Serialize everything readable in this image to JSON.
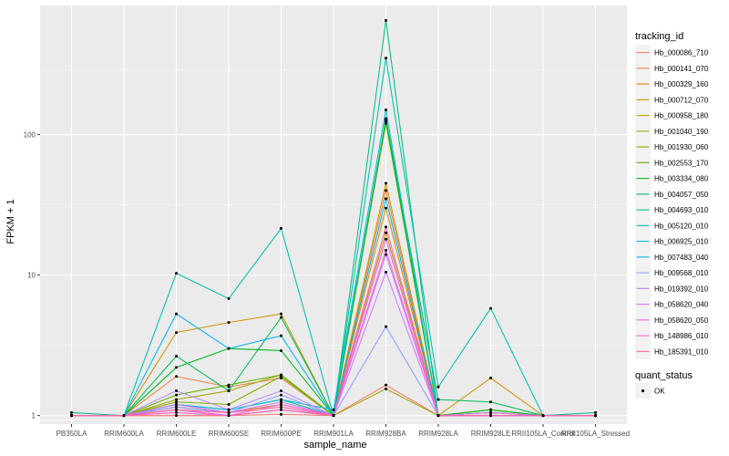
{
  "chart_data": {
    "type": "line",
    "xlabel": "sample_name",
    "ylabel": "FPKM + 1",
    "y_scale": "log10",
    "ylim": [
      0.87,
      830
    ],
    "y_ticks": [
      {
        "value": 1,
        "label": "1"
      },
      {
        "value": 10,
        "label": "10"
      },
      {
        "value": 100,
        "label": "100"
      }
    ],
    "grid": true,
    "legend_position": "right",
    "categories": [
      "PB350LA",
      "RRIM600LA",
      "RRIM600LE",
      "RRIM600SE",
      "RRIM600PE",
      "RRIM901LA",
      "RRIM928BA",
      "RRIM928LA",
      "RRIM928LE",
      "RRII105LA_Control",
      "RRII105LA_Stressed"
    ],
    "legend": {
      "title": "tracking_id",
      "series_names": [
        "Hb_000086_710",
        "Hb_000141_070",
        "Hb_000329_160",
        "Hb_000712_070",
        "Hb_000958_180",
        "Hb_001040_190",
        "Hb_001930_060",
        "Hb_002553_170",
        "Hb_003334_080",
        "Hb_004057_050",
        "Hb_004693_010",
        "Hb_005120_010",
        "Hb_006925_010",
        "Hb_007483_040",
        "Hb_009568_010",
        "Hb_019392_010",
        "Hb_058620_040",
        "Hb_058620_050",
        "Hb_148986_010",
        "Hb_185391_010"
      ]
    },
    "quant_legend": {
      "title": "quant_status",
      "label": "OK"
    },
    "series": [
      {
        "name": "Hb_000086_710",
        "color": "#F8766D",
        "values": [
          1.0,
          1.0,
          1.0,
          1.0,
          1.02,
          1.0,
          1.65,
          1.0,
          1.0,
          1.0,
          1.0
        ]
      },
      {
        "name": "Hb_000141_070",
        "color": "#EE8044",
        "values": [
          1.0,
          1.0,
          1.9,
          1.6,
          1.85,
          1.0,
          40,
          1.0,
          1.05,
          1.0,
          1.0
        ]
      },
      {
        "name": "Hb_000329_160",
        "color": "#E08B00",
        "values": [
          1.0,
          1.0,
          1.15,
          1.05,
          1.2,
          1.0,
          30,
          1.0,
          1.0,
          1.0,
          1.0
        ]
      },
      {
        "name": "Hb_000712_070",
        "color": "#CF9400",
        "values": [
          1.0,
          1.0,
          3.9,
          4.6,
          5.3,
          1.0,
          45,
          1.0,
          1.85,
          1.0,
          1.0
        ]
      },
      {
        "name": "Hb_000958_180",
        "color": "#BB9D00",
        "values": [
          1.0,
          1.0,
          1.1,
          1.0,
          1.1,
          1.0,
          20,
          1.0,
          1.0,
          1.0,
          1.0
        ]
      },
      {
        "name": "Hb_001040_190",
        "color": "#A3A500",
        "values": [
          1.0,
          1.0,
          1.3,
          1.5,
          1.95,
          1.0,
          1.55,
          1.0,
          1.0,
          1.0,
          1.0
        ]
      },
      {
        "name": "Hb_001930_060",
        "color": "#85AD00",
        "values": [
          1.0,
          1.0,
          1.25,
          1.2,
          1.9,
          1.0,
          120,
          1.0,
          1.1,
          1.0,
          1.0
        ]
      },
      {
        "name": "Hb_002553_170",
        "color": "#5BB300",
        "values": [
          1.0,
          1.0,
          1.4,
          1.65,
          1.95,
          1.0,
          125,
          1.0,
          1.05,
          1.0,
          1.0
        ]
      },
      {
        "name": "Hb_003334_080",
        "color": "#00B81F",
        "values": [
          1.0,
          1.0,
          2.2,
          3.0,
          2.9,
          1.0,
          128,
          1.0,
          1.1,
          1.0,
          1.0
        ]
      },
      {
        "name": "Hb_004057_050",
        "color": "#00BC59",
        "values": [
          1.0,
          1.0,
          2.65,
          1.5,
          5.0,
          1.0,
          130,
          1.3,
          1.25,
          1.0,
          1.0
        ]
      },
      {
        "name": "Hb_004693_010",
        "color": "#00C086",
        "values": [
          1.05,
          1.0,
          1.2,
          1.1,
          1.3,
          1.0,
          650,
          1.0,
          1.0,
          1.0,
          1.05
        ]
      },
      {
        "name": "Hb_005120_010",
        "color": "#00C0AF",
        "values": [
          1.0,
          1.0,
          10.3,
          6.8,
          21.5,
          1.0,
          350,
          1.6,
          5.8,
          1.0,
          1.0
        ]
      },
      {
        "name": "Hb_006925_010",
        "color": "#00BCD6",
        "values": [
          1.0,
          1.0,
          1.2,
          1.1,
          1.3,
          1.1,
          150,
          1.0,
          1.0,
          1.0,
          1.0
        ]
      },
      {
        "name": "Hb_007483_040",
        "color": "#00B5EE",
        "values": [
          1.0,
          1.0,
          5.3,
          3.0,
          3.7,
          1.0,
          35,
          1.0,
          1.0,
          1.0,
          1.0
        ]
      },
      {
        "name": "Hb_009568_010",
        "color": "#8D9EFF",
        "values": [
          1.0,
          1.0,
          1.15,
          1.05,
          1.4,
          1.0,
          4.3,
          1.0,
          1.0,
          1.0,
          1.0
        ]
      },
      {
        "name": "Hb_019392_010",
        "color": "#B983FF",
        "values": [
          1.0,
          1.0,
          1.5,
          1.1,
          1.5,
          1.0,
          14,
          1.0,
          1.0,
          1.0,
          1.0
        ]
      },
      {
        "name": "Hb_058620_040",
        "color": "#D972FF",
        "values": [
          1.0,
          1.0,
          1.2,
          1.05,
          1.25,
          1.0,
          10.5,
          1.0,
          1.05,
          1.0,
          1.0
        ]
      },
      {
        "name": "Hb_058620_050",
        "color": "#F066EA",
        "values": [
          1.0,
          1.0,
          1.1,
          1.0,
          1.2,
          1.0,
          18,
          1.0,
          1.0,
          1.0,
          1.0
        ]
      },
      {
        "name": "Hb_148986_010",
        "color": "#FD61D1",
        "values": [
          1.0,
          1.0,
          1.05,
          1.0,
          1.1,
          1.0,
          15,
          1.0,
          1.0,
          1.0,
          1.0
        ]
      },
      {
        "name": "Hb_185391_010",
        "color": "#FF67A4",
        "values": [
          1.0,
          1.0,
          1.1,
          1.05,
          1.15,
          1.0,
          22,
          1.0,
          1.0,
          1.0,
          1.0
        ]
      }
    ]
  }
}
